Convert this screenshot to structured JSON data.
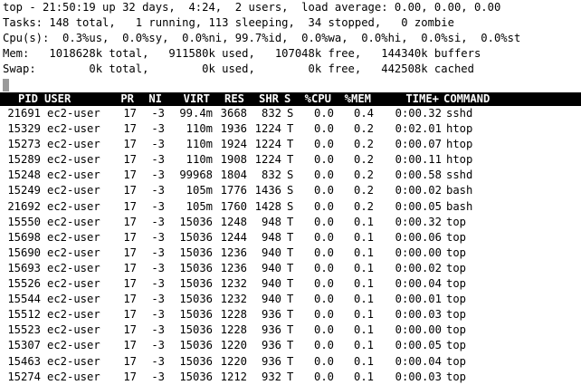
{
  "summary": {
    "line1": "top - 21:50:19 up 32 days,  4:24,  2 users,  load average: 0.00, 0.00, 0.00",
    "line2": "Tasks: 148 total,   1 running, 113 sleeping,  34 stopped,   0 zombie",
    "line3": "Cpu(s):  0.3%us,  0.0%sy,  0.0%ni, 99.7%id,  0.0%wa,  0.0%hi,  0.0%si,  0.0%st",
    "line4": "Mem:   1018628k total,   911580k used,   107048k free,   144340k buffers",
    "line5": "Swap:        0k total,        0k used,        0k free,   442508k cached"
  },
  "columns": {
    "pid": "PID",
    "user": "USER",
    "pr": "PR",
    "ni": "NI",
    "virt": "VIRT",
    "res": "RES",
    "shr": "SHR",
    "s": "S",
    "cpu": "%CPU",
    "mem": "%MEM",
    "time": "TIME+",
    "command": "COMMAND"
  },
  "processes": [
    {
      "pid": "21691",
      "user": "ec2-user",
      "pr": "17",
      "ni": "-3",
      "virt": "99.4m",
      "res": "3668",
      "shr": "832",
      "s": "S",
      "cpu": "0.0",
      "mem": "0.4",
      "time": "0:00.32",
      "command": "sshd"
    },
    {
      "pid": "15329",
      "user": "ec2-user",
      "pr": "17",
      "ni": "-3",
      "virt": "110m",
      "res": "1936",
      "shr": "1224",
      "s": "T",
      "cpu": "0.0",
      "mem": "0.2",
      "time": "0:02.01",
      "command": "htop"
    },
    {
      "pid": "15273",
      "user": "ec2-user",
      "pr": "17",
      "ni": "-3",
      "virt": "110m",
      "res": "1924",
      "shr": "1224",
      "s": "T",
      "cpu": "0.0",
      "mem": "0.2",
      "time": "0:00.07",
      "command": "htop"
    },
    {
      "pid": "15289",
      "user": "ec2-user",
      "pr": "17",
      "ni": "-3",
      "virt": "110m",
      "res": "1908",
      "shr": "1224",
      "s": "T",
      "cpu": "0.0",
      "mem": "0.2",
      "time": "0:00.11",
      "command": "htop"
    },
    {
      "pid": "15248",
      "user": "ec2-user",
      "pr": "17",
      "ni": "-3",
      "virt": "99968",
      "res": "1804",
      "shr": "832",
      "s": "S",
      "cpu": "0.0",
      "mem": "0.2",
      "time": "0:00.58",
      "command": "sshd"
    },
    {
      "pid": "15249",
      "user": "ec2-user",
      "pr": "17",
      "ni": "-3",
      "virt": "105m",
      "res": "1776",
      "shr": "1436",
      "s": "S",
      "cpu": "0.0",
      "mem": "0.2",
      "time": "0:00.02",
      "command": "bash"
    },
    {
      "pid": "21692",
      "user": "ec2-user",
      "pr": "17",
      "ni": "-3",
      "virt": "105m",
      "res": "1760",
      "shr": "1428",
      "s": "S",
      "cpu": "0.0",
      "mem": "0.2",
      "time": "0:00.05",
      "command": "bash"
    },
    {
      "pid": "15550",
      "user": "ec2-user",
      "pr": "17",
      "ni": "-3",
      "virt": "15036",
      "res": "1248",
      "shr": "948",
      "s": "T",
      "cpu": "0.0",
      "mem": "0.1",
      "time": "0:00.32",
      "command": "top"
    },
    {
      "pid": "15698",
      "user": "ec2-user",
      "pr": "17",
      "ni": "-3",
      "virt": "15036",
      "res": "1244",
      "shr": "948",
      "s": "T",
      "cpu": "0.0",
      "mem": "0.1",
      "time": "0:00.06",
      "command": "top"
    },
    {
      "pid": "15690",
      "user": "ec2-user",
      "pr": "17",
      "ni": "-3",
      "virt": "15036",
      "res": "1236",
      "shr": "940",
      "s": "T",
      "cpu": "0.0",
      "mem": "0.1",
      "time": "0:00.00",
      "command": "top"
    },
    {
      "pid": "15693",
      "user": "ec2-user",
      "pr": "17",
      "ni": "-3",
      "virt": "15036",
      "res": "1236",
      "shr": "940",
      "s": "T",
      "cpu": "0.0",
      "mem": "0.1",
      "time": "0:00.02",
      "command": "top"
    },
    {
      "pid": "15526",
      "user": "ec2-user",
      "pr": "17",
      "ni": "-3",
      "virt": "15036",
      "res": "1232",
      "shr": "940",
      "s": "T",
      "cpu": "0.0",
      "mem": "0.1",
      "time": "0:00.04",
      "command": "top"
    },
    {
      "pid": "15544",
      "user": "ec2-user",
      "pr": "17",
      "ni": "-3",
      "virt": "15036",
      "res": "1232",
      "shr": "940",
      "s": "T",
      "cpu": "0.0",
      "mem": "0.1",
      "time": "0:00.01",
      "command": "top"
    },
    {
      "pid": "15512",
      "user": "ec2-user",
      "pr": "17",
      "ni": "-3",
      "virt": "15036",
      "res": "1228",
      "shr": "936",
      "s": "T",
      "cpu": "0.0",
      "mem": "0.1",
      "time": "0:00.03",
      "command": "top"
    },
    {
      "pid": "15523",
      "user": "ec2-user",
      "pr": "17",
      "ni": "-3",
      "virt": "15036",
      "res": "1228",
      "shr": "936",
      "s": "T",
      "cpu": "0.0",
      "mem": "0.1",
      "time": "0:00.00",
      "command": "top"
    },
    {
      "pid": "15307",
      "user": "ec2-user",
      "pr": "17",
      "ni": "-3",
      "virt": "15036",
      "res": "1220",
      "shr": "936",
      "s": "T",
      "cpu": "0.0",
      "mem": "0.1",
      "time": "0:00.05",
      "command": "top"
    },
    {
      "pid": "15463",
      "user": "ec2-user",
      "pr": "17",
      "ni": "-3",
      "virt": "15036",
      "res": "1220",
      "shr": "936",
      "s": "T",
      "cpu": "0.0",
      "mem": "0.1",
      "time": "0:00.04",
      "command": "top"
    },
    {
      "pid": "15274",
      "user": "ec2-user",
      "pr": "17",
      "ni": "-3",
      "virt": "15036",
      "res": "1212",
      "shr": "932",
      "s": "T",
      "cpu": "0.0",
      "mem": "0.1",
      "time": "0:00.03",
      "command": "top"
    }
  ]
}
